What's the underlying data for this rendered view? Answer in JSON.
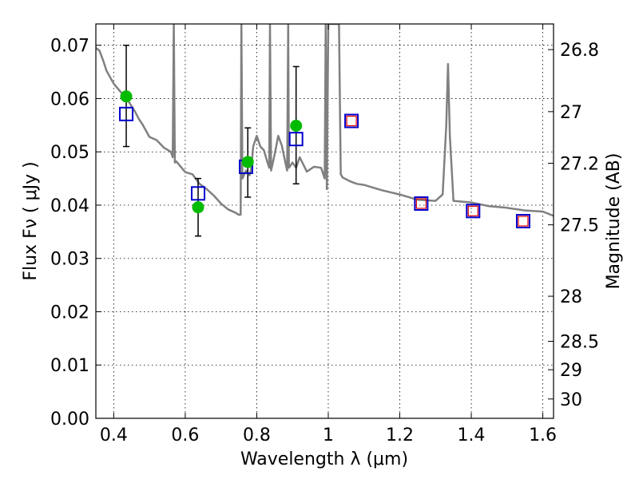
{
  "chart_data": {
    "type": "scatter",
    "xlabel": "Wavelength  λ (μm)",
    "ylabel": "Flux  Fν ( μJy )",
    "ylabel_right": "Magnitude (AB)",
    "xlim": [
      0.35,
      1.63
    ],
    "ylim": [
      0.0,
      0.074
    ],
    "x_ticks": [
      0.4,
      0.6,
      0.8,
      1.0,
      1.2,
      1.4,
      1.6
    ],
    "x_tick_labels": [
      "0.4",
      "0.6",
      "0.8",
      "1",
      "1.2",
      "1.4",
      "1.6"
    ],
    "y_ticks": [
      0.0,
      0.01,
      0.02,
      0.03,
      0.04,
      0.05,
      0.06,
      0.07
    ],
    "y_tick_labels": [
      "0.00",
      "0.01",
      "0.02",
      "0.03",
      "0.04",
      "0.05",
      "0.06",
      "0.07"
    ],
    "right_ticks": [
      26.8,
      27,
      27.2,
      27.5,
      28,
      28.5,
      29,
      30
    ],
    "right_tick_labels": [
      "26.8",
      "27",
      "27.2",
      "27.5",
      "28",
      "28.5",
      "29",
      "30"
    ],
    "grid": true,
    "colors": {
      "template": "#808080",
      "observed": "#00bb00",
      "model_box": "#0000cc",
      "model_inner": "#dd0000",
      "errorbar": "#000000"
    },
    "series": [
      {
        "type": "errorbar",
        "points": [
          {
            "x": 0.435,
            "y": 0.0604,
            "yerr_lo": 0.0094,
            "yerr_hi": 0.0096
          },
          {
            "x": 0.636,
            "y": 0.0396,
            "yerr_lo": 0.0054,
            "yerr_hi": 0.0054
          },
          {
            "x": 0.775,
            "y": 0.0481,
            "yerr_lo": 0.0066,
            "yerr_hi": 0.0064
          },
          {
            "x": 0.91,
            "y": 0.0549,
            "yerr_lo": 0.0109,
            "yerr_hi": 0.0111
          }
        ]
      },
      {
        "type": "open-square",
        "points": [
          {
            "x": 0.435,
            "y": 0.0571
          },
          {
            "x": 0.636,
            "y": 0.0422
          },
          {
            "x": 0.77,
            "y": 0.0472
          },
          {
            "x": 0.91,
            "y": 0.0524
          },
          {
            "x": 1.065,
            "y": 0.0558
          },
          {
            "x": 1.26,
            "y": 0.0403
          },
          {
            "x": 1.405,
            "y": 0.0389
          },
          {
            "x": 1.545,
            "y": 0.037
          }
        ]
      },
      {
        "type": "inner-red-square",
        "points": [
          {
            "x": 1.065,
            "y": 0.0558
          },
          {
            "x": 1.26,
            "y": 0.0403
          },
          {
            "x": 1.405,
            "y": 0.0389
          },
          {
            "x": 1.545,
            "y": 0.037
          }
        ]
      },
      {
        "type": "line",
        "x": [
          0.35,
          0.36,
          0.37,
          0.38,
          0.39,
          0.4,
          0.42,
          0.44,
          0.46,
          0.47,
          0.48,
          0.5,
          0.52,
          0.54,
          0.56,
          0.565,
          0.568,
          0.571,
          0.575,
          0.6,
          0.62,
          0.64,
          0.66,
          0.68,
          0.7,
          0.72,
          0.74,
          0.75,
          0.755,
          0.757,
          0.76,
          0.77,
          0.78,
          0.785,
          0.79,
          0.8,
          0.81,
          0.82,
          0.83,
          0.835,
          0.837,
          0.84,
          0.85,
          0.86,
          0.87,
          0.88,
          0.885,
          0.888,
          0.89,
          0.9,
          0.91,
          0.92,
          0.94,
          0.96,
          0.98,
          0.99,
          0.993,
          0.996,
          1.0,
          1.02,
          1.03,
          1.035,
          1.04,
          1.06,
          1.08,
          1.1,
          1.15,
          1.2,
          1.25,
          1.3,
          1.32,
          1.33,
          1.335,
          1.34,
          1.35,
          1.4,
          1.45,
          1.5,
          1.55,
          1.6,
          1.63
        ],
        "y": [
          0.0695,
          0.069,
          0.0672,
          0.0652,
          0.064,
          0.0628,
          0.0612,
          0.0596,
          0.0575,
          0.0562,
          0.0552,
          0.0528,
          0.0522,
          0.0508,
          0.05,
          0.049,
          0.074,
          0.048,
          0.0482,
          0.0462,
          0.0458,
          0.044,
          0.043,
          0.0418,
          0.0403,
          0.0392,
          0.0386,
          0.0382,
          0.0382,
          0.074,
          0.045,
          0.0465,
          0.0456,
          0.047,
          0.051,
          0.053,
          0.051,
          0.0503,
          0.048,
          0.047,
          0.074,
          0.0465,
          0.0495,
          0.053,
          0.0512,
          0.048,
          0.0465,
          0.074,
          0.047,
          0.048,
          0.047,
          0.049,
          0.0463,
          0.0472,
          0.047,
          0.045,
          0.074,
          0.043,
          0.074,
          0.074,
          0.074,
          0.0458,
          0.0452,
          0.0445,
          0.044,
          0.0438,
          0.0428,
          0.042,
          0.041,
          0.0408,
          0.042,
          0.055,
          0.0665,
          0.053,
          0.0408,
          0.0405,
          0.0398,
          0.0395,
          0.039,
          0.0388,
          0.038
        ]
      }
    ]
  }
}
